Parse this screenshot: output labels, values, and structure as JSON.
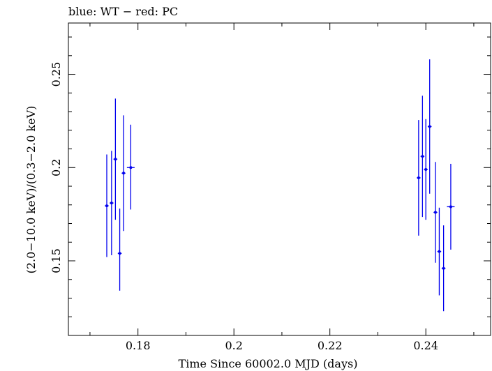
{
  "chart_data": {
    "type": "scatter",
    "title": "blue: WT − red: PC",
    "xlabel": "Time Since 60002.0 MJD (days)",
    "ylabel": "(2.0−10.0 keV)/(0.3−2.0 keV)",
    "xlim": [
      0.1655,
      0.2535
    ],
    "ylim": [
      0.11,
      0.2775
    ],
    "x_ticks": [
      {
        "value": 0.18,
        "label": "0.18"
      },
      {
        "value": 0.2,
        "label": "0.2"
      },
      {
        "value": 0.22,
        "label": "0.22"
      },
      {
        "value": 0.24,
        "label": "0.24"
      }
    ],
    "y_ticks": [
      {
        "value": 0.15,
        "label": "0.15"
      },
      {
        "value": 0.2,
        "label": "0.2"
      },
      {
        "value": 0.25,
        "label": "0.25"
      }
    ],
    "grid": false,
    "series": [
      {
        "color": "#0000ee",
        "points": [
          {
            "x": 0.1735,
            "y": 0.1795,
            "yerr_lo": 0.0275,
            "yerr_hi": 0.0275,
            "xerr": 0.0004
          },
          {
            "x": 0.1745,
            "y": 0.181,
            "yerr_lo": 0.028,
            "yerr_hi": 0.028,
            "xerr": 0.0004
          },
          {
            "x": 0.1753,
            "y": 0.2045,
            "yerr_lo": 0.0325,
            "yerr_hi": 0.0325,
            "xerr": 0.0004
          },
          {
            "x": 0.1762,
            "y": 0.154,
            "yerr_lo": 0.02,
            "yerr_hi": 0.024,
            "xerr": 0.0004
          },
          {
            "x": 0.177,
            "y": 0.197,
            "yerr_lo": 0.031,
            "yerr_hi": 0.031,
            "xerr": 0.0004
          },
          {
            "x": 0.1785,
            "y": 0.2,
            "yerr_lo": 0.0225,
            "yerr_hi": 0.023,
            "xerr": 0.0008
          },
          {
            "x": 0.2385,
            "y": 0.1945,
            "yerr_lo": 0.031,
            "yerr_hi": 0.031,
            "xerr": 0.0004
          },
          {
            "x": 0.2393,
            "y": 0.206,
            "yerr_lo": 0.0325,
            "yerr_hi": 0.0325,
            "xerr": 0.0004
          },
          {
            "x": 0.24,
            "y": 0.199,
            "yerr_lo": 0.027,
            "yerr_hi": 0.027,
            "xerr": 0.0004
          },
          {
            "x": 0.2408,
            "y": 0.222,
            "yerr_lo": 0.036,
            "yerr_hi": 0.036,
            "xerr": 0.0004
          },
          {
            "x": 0.242,
            "y": 0.176,
            "yerr_lo": 0.027,
            "yerr_hi": 0.027,
            "xerr": 0.0004
          },
          {
            "x": 0.2428,
            "y": 0.155,
            "yerr_lo": 0.0235,
            "yerr_hi": 0.0235,
            "xerr": 0.0004
          },
          {
            "x": 0.2437,
            "y": 0.146,
            "yerr_lo": 0.023,
            "yerr_hi": 0.023,
            "xerr": 0.0004
          },
          {
            "x": 0.2452,
            "y": 0.179,
            "yerr_lo": 0.023,
            "yerr_hi": 0.023,
            "xerr": 0.0008
          }
        ]
      }
    ]
  }
}
